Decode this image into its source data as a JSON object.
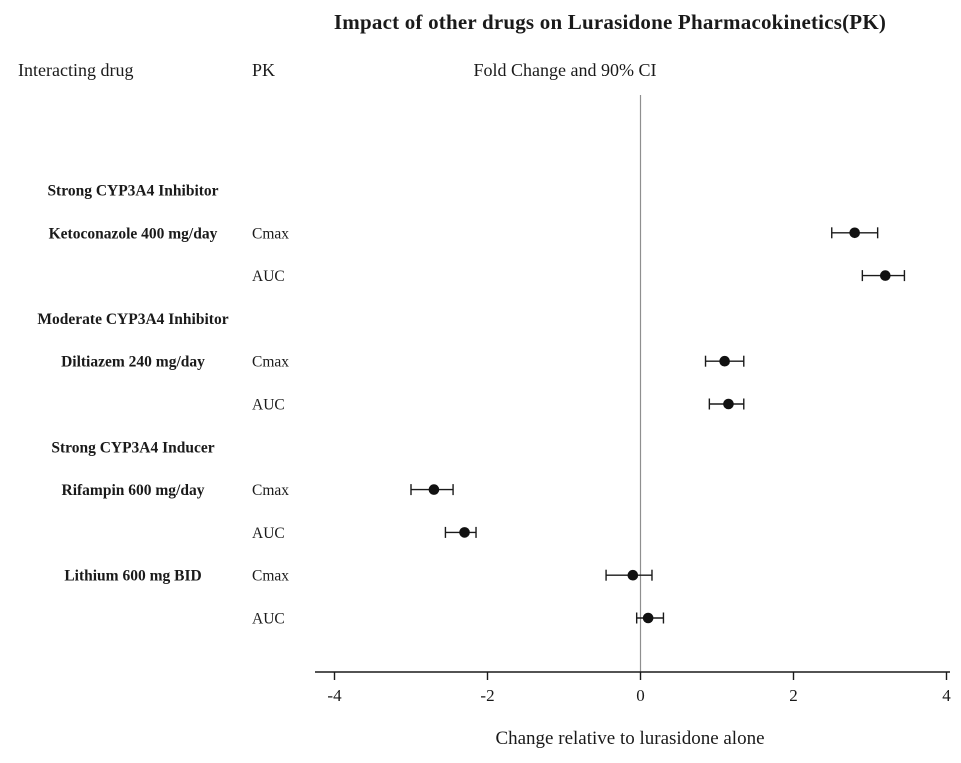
{
  "chart_data": {
    "type": "scatter",
    "subtype": "forest-plot",
    "title": "Impact of other drugs on Lurasidone Pharmacokinetics(PK)",
    "col_headers": {
      "drug": "Interacting drug",
      "pk": "PK",
      "value": "Fold Change and 90% CI"
    },
    "xlabel": "Change relative to lurasidone alone",
    "x_ticks": [
      -4,
      -2,
      0,
      2,
      4
    ],
    "xlim": [
      -4.3,
      4.1
    ],
    "reference_x": 0,
    "grid": "off",
    "marker_color": "#111111",
    "reference_line_color": "#8f8f8f",
    "rows": [
      {
        "kind": "group",
        "label": "Strong CYP3A4 Inhibitor"
      },
      {
        "kind": "data",
        "drug": "Ketoconazole 400 mg/day",
        "pk": "Cmax",
        "est": 2.8,
        "lo": 2.5,
        "hi": 3.1
      },
      {
        "kind": "data",
        "drug": "",
        "pk": "AUC",
        "est": 3.2,
        "lo": 2.9,
        "hi": 3.45
      },
      {
        "kind": "group",
        "label": "Moderate CYP3A4 Inhibitor"
      },
      {
        "kind": "data",
        "drug": "Diltiazem 240 mg/day",
        "pk": "Cmax",
        "est": 1.1,
        "lo": 0.85,
        "hi": 1.35
      },
      {
        "kind": "data",
        "drug": "",
        "pk": "AUC",
        "est": 1.15,
        "lo": 0.9,
        "hi": 1.35
      },
      {
        "kind": "group",
        "label": "Strong CYP3A4 Inducer"
      },
      {
        "kind": "data",
        "drug": "Rifampin 600 mg/day",
        "pk": "Cmax",
        "est": -2.7,
        "lo": -3.0,
        "hi": -2.45
      },
      {
        "kind": "data",
        "drug": "",
        "pk": "AUC",
        "est": -2.3,
        "lo": -2.55,
        "hi": -2.15
      },
      {
        "kind": "data",
        "drug": "Lithium 600 mg BID",
        "pk": "Cmax",
        "est": -0.1,
        "lo": -0.45,
        "hi": 0.15
      },
      {
        "kind": "data",
        "drug": "",
        "pk": "AUC",
        "est": 0.1,
        "lo": -0.05,
        "hi": 0.3
      }
    ]
  }
}
